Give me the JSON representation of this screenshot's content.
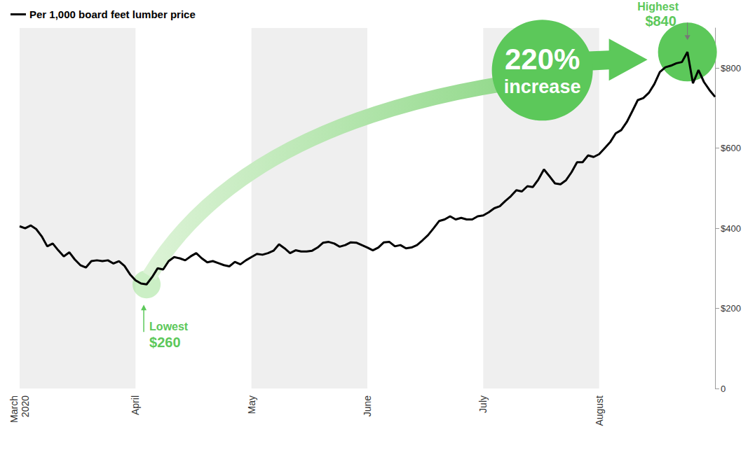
{
  "chart_data": {
    "type": "line",
    "legend": "top-left",
    "grid": false,
    "categories": [
      "March\n2020",
      null,
      null,
      null,
      null,
      null,
      null,
      null,
      null,
      null,
      null,
      null,
      null,
      null,
      null,
      null,
      null,
      null,
      null,
      null,
      null,
      "April",
      null,
      null,
      null,
      null,
      null,
      null,
      null,
      null,
      null,
      null,
      null,
      null,
      null,
      null,
      null,
      null,
      null,
      null,
      null,
      null,
      "May",
      null,
      null,
      null,
      null,
      null,
      null,
      null,
      null,
      null,
      null,
      null,
      null,
      null,
      null,
      null,
      null,
      null,
      null,
      null,
      null,
      "June",
      null,
      null,
      null,
      null,
      null,
      null,
      null,
      null,
      null,
      null,
      null,
      null,
      null,
      null,
      null,
      null,
      null,
      null,
      null,
      null,
      "July",
      null,
      null,
      null,
      null,
      null,
      null,
      null,
      null,
      null,
      null,
      null,
      null,
      null,
      null,
      null,
      null,
      null,
      null,
      null,
      null,
      "August",
      null,
      null,
      null,
      null,
      null,
      null,
      null,
      null,
      null,
      null,
      null,
      null,
      null,
      null,
      null,
      null,
      null,
      null,
      null,
      null,
      null
    ],
    "series": [
      {
        "name": "Per 1,000 board feet lumber price",
        "color": "#000000",
        "values": [
          405,
          400,
          407,
          398,
          380,
          355,
          362,
          345,
          330,
          340,
          322,
          308,
          302,
          318,
          320,
          318,
          320,
          312,
          318,
          306,
          285,
          270,
          262,
          260,
          278,
          300,
          297,
          318,
          328,
          325,
          320,
          330,
          338,
          325,
          315,
          318,
          313,
          308,
          305,
          316,
          310,
          320,
          328,
          336,
          334,
          338,
          344,
          360,
          350,
          338,
          345,
          342,
          342,
          344,
          352,
          364,
          366,
          362,
          354,
          358,
          365,
          364,
          358,
          352,
          345,
          352,
          365,
          366,
          355,
          358,
          350,
          352,
          358,
          370,
          383,
          400,
          418,
          422,
          430,
          422,
          426,
          422,
          422,
          430,
          432,
          440,
          450,
          455,
          468,
          480,
          495,
          492,
          505,
          503,
          522,
          547,
          530,
          512,
          510,
          520,
          540,
          565,
          565,
          582,
          578,
          585,
          600,
          615,
          637,
          645,
          665,
          692,
          720,
          725,
          738,
          760,
          790,
          802,
          806,
          812,
          815,
          840,
          762,
          795,
          765,
          745,
          728
        ]
      }
    ],
    "ylim": [
      0,
      900
    ],
    "yticks": [
      0,
      {
        "value": 200,
        "label": "$200"
      },
      {
        "value": 400,
        "label": "$400"
      },
      {
        "value": 600,
        "label": "$600"
      },
      {
        "value": 800,
        "label": "$800"
      }
    ],
    "annotations": [
      {
        "label": "Lowest",
        "value": 260,
        "value_label": "$260",
        "x": 23
      },
      {
        "label": "Highest",
        "value": 840,
        "value_label": "$840",
        "x": 121
      },
      {
        "label": "220%",
        "text": "increase"
      }
    ]
  }
}
